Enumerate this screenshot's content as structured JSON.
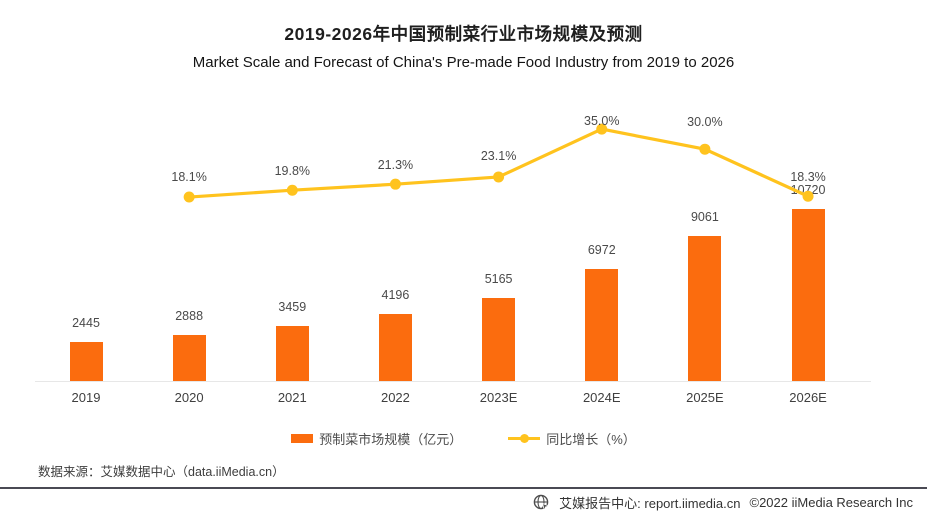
{
  "header": {
    "title": "2019-2026年中国预制菜行业市场规模及预测",
    "subtitle": "Market Scale and Forecast of China's Pre-made Food Industry from 2019 to 2026"
  },
  "chart_data": {
    "type": "bar+line",
    "title": "2019-2026年中国预制菜行业市场规模及预测",
    "subtitle": "Market Scale and Forecast of China's Pre-made Food Industry from 2019 to 2026",
    "categories": [
      "2019",
      "2020",
      "2021",
      "2022",
      "2023E",
      "2024E",
      "2025E",
      "2026E"
    ],
    "series": [
      {
        "name": "预制菜市场规模（亿元）",
        "chart": "bar",
        "unit": "亿元",
        "color": "#FB6C0E",
        "values": [
          2445,
          2888,
          3459,
          4196,
          5165,
          6972,
          9061,
          10720
        ],
        "value_labels": [
          "2445",
          "2888",
          "3459",
          "4196",
          "5165",
          "6972",
          "9061",
          "10720"
        ]
      },
      {
        "name": "同比增长（%）",
        "chart": "line",
        "unit": "%",
        "color": "#FFC31E",
        "values": [
          null,
          18.1,
          19.8,
          21.3,
          23.1,
          35.0,
          30.0,
          18.3
        ],
        "point_labels": [
          "",
          "18.1%",
          "19.8%",
          "21.3%",
          "23.1%",
          "35.0%",
          "30.0%",
          "18.3%"
        ]
      }
    ],
    "legend_position": "bottom",
    "grid": false,
    "value_labels_shown": true,
    "y_axis_shown": false
  },
  "legend": {
    "bar_label": "预制菜市场规模（亿元）",
    "line_label": "同比增长（%）"
  },
  "footer": {
    "source": "数据来源：艾媒数据中心（data.iiMedia.cn）",
    "report_center": "艾媒报告中心: report.iimedia.cn",
    "copyright": "©2022  iiMedia Research Inc"
  },
  "colors": {
    "bar": "#FB6C0E",
    "line": "#FFC31E",
    "axis": "#E7E7E7",
    "text_dark": "#1F1F1F",
    "text_gray": "#4A4A4A",
    "divider": "#4A4A54"
  }
}
